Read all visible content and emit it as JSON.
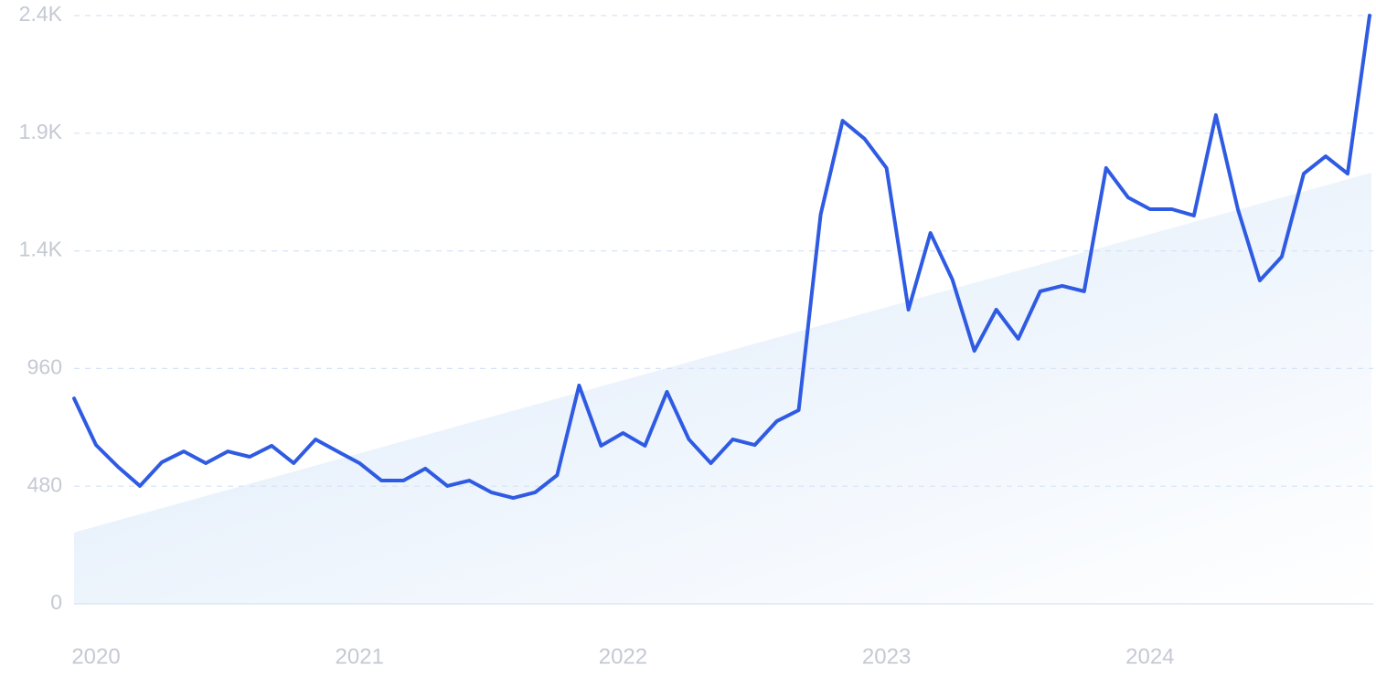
{
  "chart_data": {
    "type": "line",
    "categories": [
      null,
      "2020",
      null,
      null,
      null,
      null,
      null,
      null,
      null,
      null,
      null,
      null,
      null,
      "2021",
      null,
      null,
      null,
      null,
      null,
      null,
      null,
      null,
      null,
      null,
      null,
      "2022",
      null,
      null,
      null,
      null,
      null,
      null,
      null,
      null,
      null,
      null,
      null,
      "2023",
      null,
      null,
      null,
      null,
      null,
      null,
      null,
      null,
      null,
      null,
      null,
      "2024",
      null,
      null,
      null,
      null,
      null,
      null,
      null,
      null,
      null,
      null
    ],
    "series": [
      {
        "color": "#2f5be3",
        "values": [
          838,
          648,
          559,
          481,
          578,
          622,
          574,
          622,
          600,
          645,
          574,
          671,
          622,
          574,
          503,
          503,
          552,
          481,
          503,
          455,
          432,
          455,
          525,
          891,
          645,
          697,
          645,
          865,
          671,
          574,
          671,
          648,
          745,
          790,
          1588,
          1971,
          1897,
          1778,
          1200,
          1513,
          1323,
          1032,
          1200,
          1081,
          1275,
          1297,
          1275,
          1778,
          1658,
          1610,
          1610,
          1584,
          1994,
          1610,
          1319,
          1416,
          1755,
          1826,
          1755,
          2400
        ]
      }
    ],
    "trend_values": [
      291,
      1759
    ],
    "trend_color": "#dbe9fa",
    "ylim": [
      0,
      2400
    ],
    "yticks": [
      0,
      480,
      960,
      {
        "value": 1440,
        "label": "1.4K"
      },
      {
        "value": 1920,
        "label": "1.9K"
      },
      {
        "value": 2400,
        "label": "2.4K"
      }
    ],
    "grid": true
  }
}
